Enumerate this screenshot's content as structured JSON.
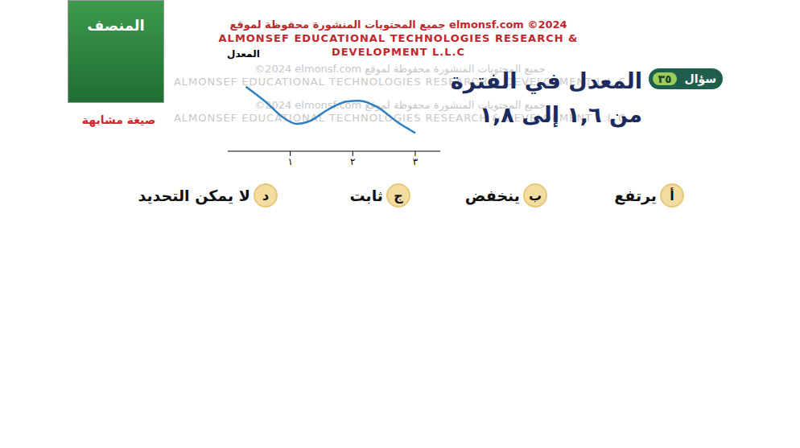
{
  "header": {
    "lines": [
      "جميع المحتويات المنشورة محفوظة لموقع elmonsf.com  ©2024",
      "ALMONSEF EDUCATIONAL TECHNOLOGIES RESEARCH &",
      "DEVELOPMENT L.L.C"
    ]
  },
  "watermark": [
    "©2024  elmonsf.com  جميع المحتويات المنشورة محفوظة لموقع",
    "ALMONSEF EDUCATIONAL TECHNOLOGIES RESEARCH & DEVELOPMENT L.L.C"
  ],
  "book": {
    "title": "المنصف",
    "caption": "صيغة مشابهة"
  },
  "question": {
    "badge": "سؤال",
    "number": "٣٥",
    "lines": [
      "المعدل في الفترة",
      "من ١,٦ إلى ١,٨"
    ],
    "options": [
      {
        "letter": "أ",
        "text": "يرتفع"
      },
      {
        "letter": "ب",
        "text": "ينخفض"
      },
      {
        "letter": "ج",
        "text": "ثابت"
      },
      {
        "letter": "د",
        "text": "لا يمكن التحديد"
      }
    ]
  },
  "chart_data": {
    "type": "line",
    "y_label": "المعدل",
    "x": [
      0.29,
      0.6,
      0.9,
      1.1,
      1.3,
      1.6,
      1.9,
      2.1,
      2.4,
      2.7,
      3.0
    ],
    "values": [
      7.8,
      6.0,
      4.0,
      3.3,
      3.6,
      5.0,
      6.0,
      6.1,
      5.3,
      3.6,
      2.2
    ],
    "color": "#2f7fc1",
    "xlim": [
      0,
      3.4
    ],
    "xticks": [
      {
        "value": 1,
        "label": "١"
      },
      {
        "value": 2,
        "label": "٢"
      },
      {
        "value": 3,
        "label": "٣"
      }
    ],
    "ylim": [
      0,
      10
    ],
    "yticks": [],
    "tick_labels": "x"
  }
}
